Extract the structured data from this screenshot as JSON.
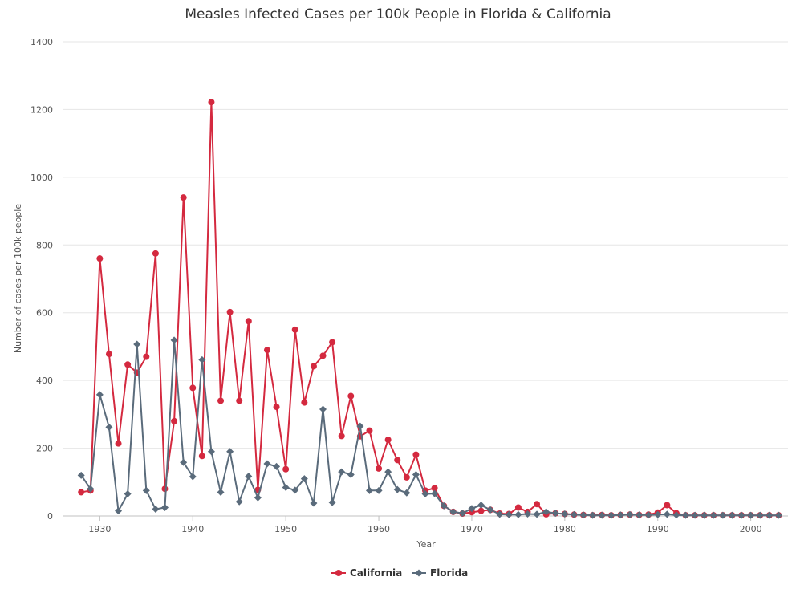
{
  "chart_data": {
    "type": "line",
    "title": "Measles Infected Cases per 100k People in Florida & California",
    "xlabel": "Year",
    "ylabel": "Number of cases per 100k people",
    "xlim": [
      1926,
      2004
    ],
    "ylim": [
      0,
      1400
    ],
    "x_ticks": [
      1930,
      1940,
      1950,
      1960,
      1970,
      1980,
      1990,
      2000
    ],
    "y_ticks": [
      0,
      200,
      400,
      600,
      800,
      1000,
      1200,
      1400
    ],
    "grid": true,
    "legend_position": "bottom-center",
    "x": [
      1928,
      1929,
      1930,
      1931,
      1932,
      1933,
      1934,
      1935,
      1936,
      1937,
      1938,
      1939,
      1940,
      1941,
      1942,
      1943,
      1944,
      1945,
      1946,
      1947,
      1948,
      1949,
      1950,
      1951,
      1952,
      1953,
      1954,
      1955,
      1956,
      1957,
      1958,
      1959,
      1960,
      1961,
      1962,
      1963,
      1964,
      1965,
      1966,
      1967,
      1968,
      1969,
      1970,
      1971,
      1972,
      1973,
      1974,
      1975,
      1976,
      1977,
      1978,
      1979,
      1980,
      1981,
      1982,
      1983,
      1984,
      1985,
      1986,
      1987,
      1988,
      1989,
      1990,
      1991,
      1992,
      1993,
      1994,
      1995,
      1996,
      1997,
      1998,
      1999,
      2000,
      2001,
      2002,
      2003
    ],
    "series": [
      {
        "name": "California",
        "color": "#d4293f",
        "marker": "circle",
        "values": [
          70,
          75,
          760,
          478,
          214,
          447,
          423,
          470,
          775,
          80,
          280,
          940,
          378,
          177,
          1222,
          340,
          602,
          340,
          575,
          77,
          490,
          322,
          138,
          550,
          335,
          442,
          473,
          513,
          236,
          354,
          235,
          252,
          140,
          225,
          165,
          114,
          181,
          75,
          82,
          30,
          12,
          7,
          11,
          15,
          18,
          7,
          6,
          25,
          12,
          35,
          5,
          8,
          6,
          4,
          3,
          2,
          3,
          2,
          3,
          4,
          3,
          4,
          10,
          32,
          8,
          2,
          2,
          2,
          2,
          2,
          2,
          2,
          2,
          2,
          2,
          2
        ]
      },
      {
        "name": "Florida",
        "color": "#5a6b7b",
        "marker": "diamond",
        "values": [
          120,
          80,
          358,
          262,
          15,
          65,
          507,
          75,
          20,
          25,
          519,
          158,
          116,
          461,
          190,
          70,
          190,
          42,
          117,
          54,
          154,
          146,
          84,
          76,
          110,
          38,
          315,
          40,
          130,
          122,
          265,
          75,
          75,
          130,
          78,
          68,
          122,
          65,
          66,
          30,
          12,
          8,
          22,
          32,
          18,
          5,
          4,
          4,
          6,
          5,
          12,
          8,
          6,
          4,
          3,
          2,
          2,
          2,
          3,
          4,
          3,
          3,
          4,
          5,
          3,
          2,
          2,
          2,
          2,
          2,
          2,
          2,
          2,
          2,
          2,
          2
        ]
      }
    ]
  }
}
